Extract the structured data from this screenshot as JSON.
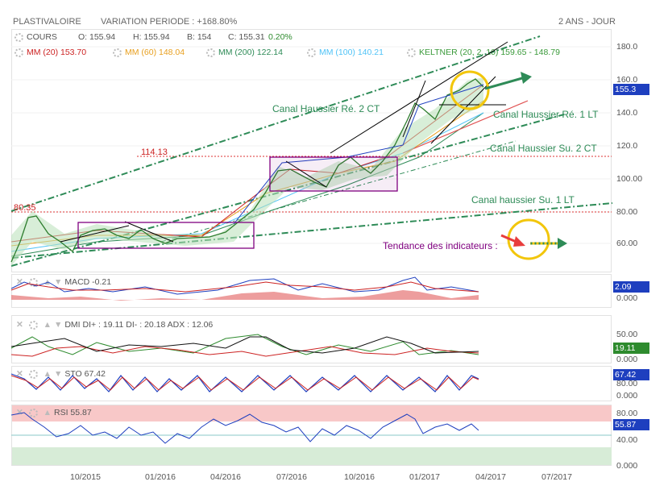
{
  "header": {
    "title": "PLASTIVALOIRE",
    "variation": "VARIATION PERIODE : +168.80%",
    "period": "2 ANS - JOUR"
  },
  "cours": {
    "label": "COURS",
    "o": "O: 155.94",
    "h": "H: 155.94",
    "b": "B: 154",
    "c": "C: 155.31",
    "chg": "0.20%"
  },
  "indicators": {
    "mm20": "MM (20) 153.70",
    "mm60": "MM (60) 148.04",
    "mm200": "MM (200) 122.14",
    "mm100": "MM (100) 140.21",
    "keltner": "KELTNER (20, 2, 10) 159.65 - 148.79"
  },
  "colors": {
    "price": "#2e7d2e",
    "mm20": "#cc2222",
    "mm60": "#e8a020",
    "mm200": "#2e8b57",
    "mm100": "#4fc3f7",
    "keltner": "#3a9a3a",
    "channel": "#2e8b57",
    "purple": "#800080",
    "tag_blue": "#1e3fbf",
    "tag_green": "#2e8b2e",
    "rsi_over": "#f8c8c8",
    "rsi_under": "#d7ecd7"
  },
  "annotations": {
    "canal1": "Canal Haussier Ré. 2 CT",
    "canal2": "Canal Haussier Ré. 1 LT",
    "canal3": "Canal Haussier Su. 2 CT",
    "canal4": "Canal haussier Su. 1 LT",
    "tendance": "Tendance des indicateurs :",
    "level_114": "114.13",
    "level_80": "80.35"
  },
  "price_axis": {
    "ticks": [
      "180.0",
      "160.0",
      "140.0",
      "120.0",
      "100.00",
      "80.00",
      "60.00"
    ],
    "last": "155.3"
  },
  "macd": {
    "label": "MACD",
    "value": "-0.21",
    "tag": "2.09",
    "zero": "0.000"
  },
  "dmi": {
    "label": "DMI",
    "text": "DI+ : 19.11 DI- : 20.18 ADX : 12.06",
    "tick_high": "50.00",
    "tag": "19.11",
    "zero": "0.000"
  },
  "sto": {
    "label": "STO",
    "value": "67.42",
    "tag": "67.42",
    "tick_high": "80.00",
    "zero": "0.000"
  },
  "rsi": {
    "label": "RSI",
    "value": "55.87",
    "tag": "55.87",
    "tick_high": "80.00",
    "tick_mid": "40.00",
    "zero": "0.000"
  },
  "x_axis": [
    "10/2015",
    "01/2016",
    "04/2016",
    "07/2016",
    "10/2016",
    "01/2017",
    "04/2017",
    "07/2017"
  ],
  "chart_data": {
    "type": "line",
    "title": "PLASTIVALOIRE",
    "xlabel": "",
    "ylabel": "",
    "ylim": [
      50,
      185
    ],
    "x": [
      "2015-07",
      "2015-08",
      "2015-09",
      "2015-10",
      "2015-11",
      "2015-12",
      "2016-01",
      "2016-02",
      "2016-03",
      "2016-04",
      "2016-05",
      "2016-06",
      "2016-07",
      "2016-08",
      "2016-09",
      "2016-10",
      "2016-11",
      "2016-12",
      "2017-01",
      "2017-02",
      "2017-03",
      "2017-04"
    ],
    "series": [
      {
        "name": "COURS",
        "values": [
          62,
          78,
          66,
          72,
          70,
          74,
          70,
          64,
          68,
          67,
          74,
          88,
          104,
          98,
          96,
          112,
          102,
          118,
          146,
          138,
          154,
          155
        ]
      }
    ],
    "levels": [
      114.13,
      80.35
    ],
    "grid": true
  }
}
